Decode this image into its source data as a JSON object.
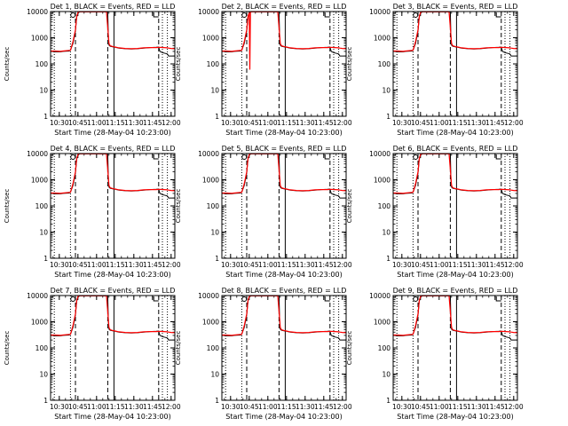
{
  "chart_data": [
    {
      "type": "line",
      "title": "Det 1, BLACK = Events, RED = LLD",
      "xlabel": "Start Time (28-May-04 10:23:00)",
      "ylabel": "Counts/sec",
      "variant": "base"
    },
    {
      "type": "line",
      "title": "Det 2, BLACK = Events, RED = LLD",
      "xlabel": "Start Time (28-May-04 10:23:00)",
      "ylabel": "Counts/sec",
      "variant": "spike"
    },
    {
      "type": "line",
      "title": "Det 3, BLACK = Events, RED = LLD",
      "xlabel": "Start Time (28-May-04 10:23:00)",
      "ylabel": "Counts/sec",
      "variant": "base"
    },
    {
      "type": "line",
      "title": "Det 4, BLACK = Events, RED = LLD",
      "xlabel": "Start Time (28-May-04 10:23:00)",
      "ylabel": "Counts/sec",
      "variant": "base"
    },
    {
      "type": "line",
      "title": "Det 5, BLACK = Events, RED = LLD",
      "xlabel": "Start Time (28-May-04 10:23:00)",
      "ylabel": "Counts/sec",
      "variant": "base"
    },
    {
      "type": "line",
      "title": "Det 6, BLACK = Events, RED = LLD",
      "xlabel": "Start Time (28-May-04 10:23:00)",
      "ylabel": "Counts/sec",
      "variant": "base"
    },
    {
      "type": "line",
      "title": "Det 7, BLACK = Events, RED = LLD",
      "xlabel": "Start Time (28-May-04 10:23:00)",
      "ylabel": "Counts/sec",
      "variant": "base"
    },
    {
      "type": "line",
      "title": "Det 8, BLACK = Events, RED = LLD",
      "xlabel": "Start Time (28-May-04 10:23:00)",
      "ylabel": "Counts/sec",
      "variant": "base"
    },
    {
      "type": "line",
      "title": "Det 9, BLACK = Events, RED = LLD",
      "xlabel": "Start Time (28-May-04 10:23:00)",
      "ylabel": "Counts/sec",
      "variant": "base"
    }
  ],
  "shared": {
    "x_unit": "minutes after 10:23:00",
    "xlim": [
      0,
      100
    ],
    "ylim": [
      1,
      10000
    ],
    "yscale": "log",
    "yticks": [
      1,
      10,
      100,
      1000,
      10000
    ],
    "ytick_labels": [
      "1",
      "10",
      "100",
      "1000",
      "10000"
    ],
    "xticks": [
      7,
      22,
      37,
      52,
      67,
      82,
      97
    ],
    "xtick_labels": [
      "10:30",
      "10:45",
      "11:00",
      "11:15",
      "11:30",
      "11:45",
      "12:00"
    ],
    "vlines": [
      {
        "x": 3,
        "style": "dotted"
      },
      {
        "x": 16,
        "style": "dotted"
      },
      {
        "x": 20,
        "style": "dashed"
      },
      {
        "x": 46,
        "style": "dashed"
      },
      {
        "x": 51,
        "style": "solid"
      },
      {
        "x": 87,
        "style": "dashed"
      },
      {
        "x": 90,
        "style": "dotted"
      },
      {
        "x": 94,
        "style": "dotted"
      }
    ],
    "events_color": "#000000",
    "lld_color": "#ff0000",
    "series": [
      {
        "name": "Events",
        "x": [
          0,
          1,
          3,
          8,
          10,
          10,
          15,
          16,
          18,
          20,
          21,
          22,
          23,
          24,
          25,
          26,
          27,
          30,
          35,
          40,
          44,
          45,
          46,
          46.5,
          47,
          48,
          50,
          52,
          55,
          60,
          65,
          70,
          75,
          80,
          85,
          87,
          88,
          90,
          94,
          95,
          97,
          100
        ],
        "y": [
          300,
          300,
          290,
          290,
          300,
          300,
          310,
          330,
          600,
          1800,
          6000,
          8500,
          9500,
          10000,
          9900,
          9800,
          9800,
          9800,
          9800,
          9800,
          9800,
          9800,
          9800,
          1000,
          520,
          470,
          450,
          430,
          400,
          380,
          370,
          380,
          400,
          420,
          430,
          440,
          300,
          270,
          240,
          200,
          200,
          200
        ]
      },
      {
        "name": "LLD",
        "x": [
          0,
          3,
          8,
          10,
          16,
          18,
          20,
          21,
          22,
          23,
          24,
          25,
          27,
          30,
          38,
          44,
          45,
          46,
          47,
          48,
          50,
          52,
          55,
          60,
          65,
          70,
          75,
          80,
          85,
          88,
          91,
          94,
          95,
          97,
          100
        ],
        "y": [
          310,
          310,
          300,
          310,
          330,
          700,
          2000,
          6500,
          9000,
          10000,
          9800,
          9800,
          9800,
          9800,
          9800,
          9800,
          9500,
          2500,
          600,
          490,
          460,
          440,
          410,
          390,
          380,
          390,
          410,
          420,
          420,
          430,
          420,
          410,
          400,
          390,
          380
        ]
      }
    ]
  }
}
